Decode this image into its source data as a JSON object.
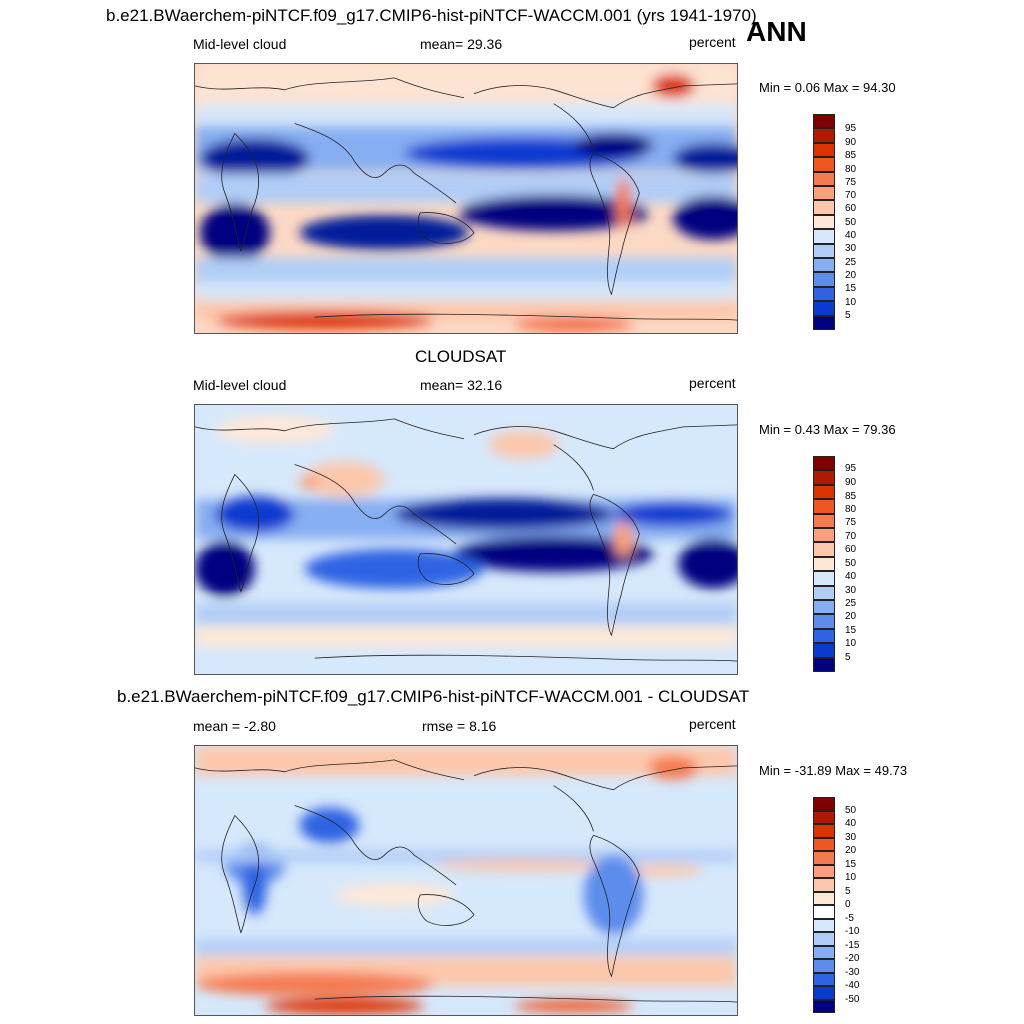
{
  "header": {
    "title": "b.e21.BWaerchem-piNTCF.f09_g17.CMIP6-hist-piNTCF-WACCM.001 (yrs 1941-1970)",
    "season": "ANN"
  },
  "panels": [
    {
      "title": "",
      "left_label": "Mid-level cloud",
      "center_label": "mean=  29.36",
      "units": "percent",
      "minmax": "Min =   0.06 Max =  94.30",
      "levels": [
        "95",
        "90",
        "85",
        "80",
        "75",
        "70",
        "60",
        "50",
        "40",
        "30",
        "25",
        "20",
        "15",
        "10",
        "5"
      ]
    },
    {
      "title": "CLOUDSAT",
      "left_label": "Mid-level cloud",
      "center_label": "mean=  32.16",
      "units": "percent",
      "minmax": "Min =   0.43 Max =  79.36",
      "levels": [
        "95",
        "90",
        "85",
        "80",
        "75",
        "70",
        "60",
        "50",
        "40",
        "30",
        "25",
        "20",
        "15",
        "10",
        "5"
      ]
    },
    {
      "title": "b.e21.BWaerchem-piNTCF.f09_g17.CMIP6-hist-piNTCF-WACCM.001 - CLOUDSAT",
      "left_label": "mean =  -2.80",
      "center_label": "rmse =   8.16",
      "units": "percent",
      "minmax": "Min = -31.89 Max =  49.73",
      "levels": [
        "50",
        "40",
        "30",
        "20",
        "15",
        "10",
        "5",
        "0",
        "-5",
        "-10",
        "-15",
        "-20",
        "-30",
        "-40",
        "-50"
      ]
    }
  ],
  "colors": {
    "cloud_scale": [
      "#800000",
      "#b01800",
      "#dd3300",
      "#f05522",
      "#f57a50",
      "#f9a07c",
      "#fcc7ab",
      "#fde8d8",
      "#ffffff",
      "#d6e8fb",
      "#b0cdf7",
      "#86aef2",
      "#5c8cec",
      "#2f63e3",
      "#0a3ad0",
      "#021a99",
      "#000080"
    ],
    "diff_scale": [
      "#800000",
      "#b01800",
      "#dd3300",
      "#f05522",
      "#f57a50",
      "#f9a07c",
      "#fcc7ab",
      "#fde8d8",
      "#ffffff",
      "#d6e8fb",
      "#b0cdf7",
      "#86aef2",
      "#5c8cec",
      "#2f63e3",
      "#0a3ad0",
      "#021a99",
      "#000080"
    ]
  }
}
